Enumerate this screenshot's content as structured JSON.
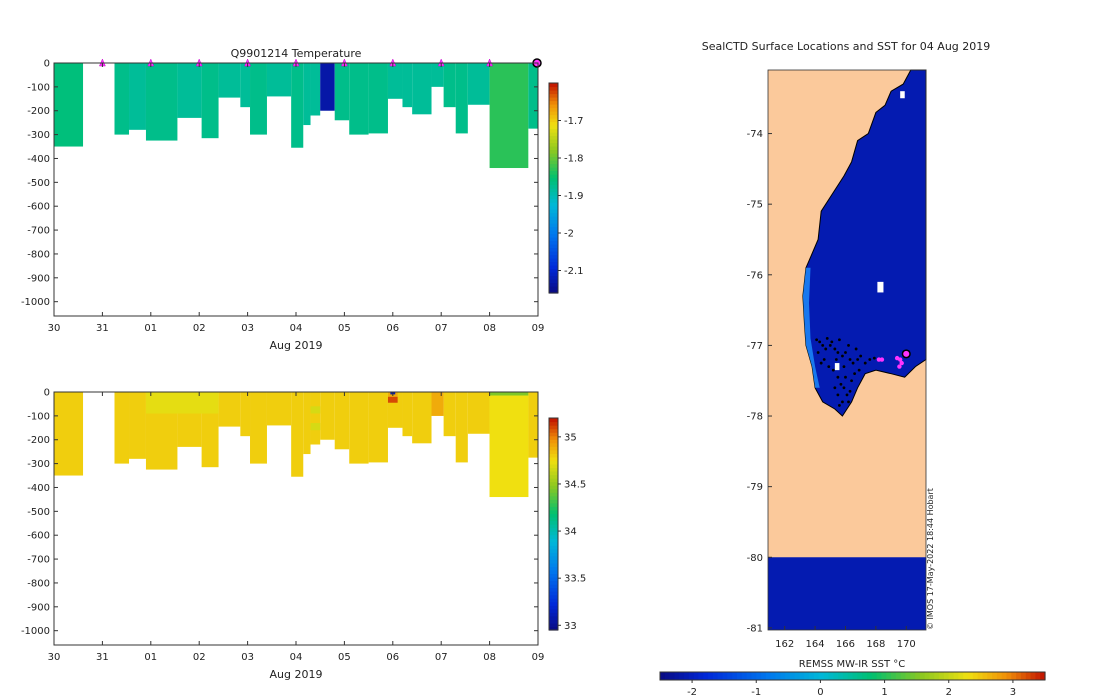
{
  "figure": {
    "credit": "© IMOS 17-May-2022 18:44 Hobart"
  },
  "chart_data": [
    {
      "type": "heatmap",
      "title": "Q9901214  Temperature",
      "xlabel": "Aug 2019",
      "x_ticks": [
        "30",
        "31",
        "01",
        "02",
        "03",
        "04",
        "05",
        "06",
        "07",
        "08",
        "09"
      ],
      "x_range_days": [
        0,
        10
      ],
      "y_ticks": [
        0,
        -100,
        -200,
        -300,
        -400,
        -500,
        -600,
        -700,
        -800,
        -900,
        -1000
      ],
      "ylim": [
        -1060,
        0
      ],
      "colorbar": {
        "ticks": [
          -1.7,
          -1.8,
          -1.9,
          -2,
          -2.1
        ],
        "range": [
          -2.16,
          -1.6
        ]
      },
      "surface_markers_days": [
        1,
        2,
        3,
        4,
        5,
        6,
        7,
        8,
        9
      ],
      "last_marker_day": 10,
      "profiles": [
        {
          "start": 0.0,
          "end": 0.6,
          "depth": 350,
          "value": -1.86
        },
        {
          "start": 1.25,
          "end": 1.55,
          "depth": 300,
          "value": -1.87
        },
        {
          "start": 1.55,
          "end": 1.9,
          "depth": 280,
          "value": -1.88
        },
        {
          "start": 1.9,
          "end": 2.55,
          "depth": 325,
          "value": -1.87
        },
        {
          "start": 2.55,
          "end": 3.05,
          "depth": 230,
          "value": -1.88
        },
        {
          "start": 3.05,
          "end": 3.4,
          "depth": 315,
          "value": -1.87
        },
        {
          "start": 3.4,
          "end": 3.85,
          "depth": 145,
          "value": -1.88
        },
        {
          "start": 3.85,
          "end": 4.05,
          "depth": 185,
          "value": -1.88
        },
        {
          "start": 4.05,
          "end": 4.4,
          "depth": 300,
          "value": -1.87
        },
        {
          "start": 4.4,
          "end": 4.9,
          "depth": 140,
          "value": -1.88
        },
        {
          "start": 4.9,
          "end": 5.15,
          "depth": 355,
          "value": -1.87
        },
        {
          "start": 5.15,
          "end": 5.3,
          "depth": 260,
          "value": -1.88
        },
        {
          "start": 5.3,
          "end": 5.5,
          "depth": 220,
          "value": -1.88
        },
        {
          "start": 5.5,
          "end": 5.8,
          "depth": 200,
          "value": -2.13
        },
        {
          "start": 5.8,
          "end": 6.1,
          "depth": 240,
          "value": -1.87
        },
        {
          "start": 6.1,
          "end": 6.5,
          "depth": 300,
          "value": -1.87
        },
        {
          "start": 6.5,
          "end": 6.9,
          "depth": 295,
          "value": -1.87
        },
        {
          "start": 6.9,
          "end": 7.2,
          "depth": 150,
          "value": -1.88
        },
        {
          "start": 7.2,
          "end": 7.4,
          "depth": 185,
          "value": -1.88
        },
        {
          "start": 7.4,
          "end": 7.8,
          "depth": 215,
          "value": -1.88
        },
        {
          "start": 7.8,
          "end": 8.05,
          "depth": 100,
          "value": -1.88
        },
        {
          "start": 8.05,
          "end": 8.3,
          "depth": 185,
          "value": -1.87
        },
        {
          "start": 8.3,
          "end": 8.55,
          "depth": 295,
          "value": -1.87
        },
        {
          "start": 8.55,
          "end": 9.0,
          "depth": 175,
          "value": -1.88
        },
        {
          "start": 9.0,
          "end": 9.8,
          "depth": 440,
          "value": -1.83
        },
        {
          "start": 9.8,
          "end": 10.05,
          "depth": 275,
          "value": -1.87
        }
      ]
    },
    {
      "type": "heatmap",
      "title": "",
      "xlabel": "Aug 2019",
      "x_ticks": [
        "30",
        "31",
        "01",
        "02",
        "03",
        "04",
        "05",
        "06",
        "07",
        "08",
        "09"
      ],
      "x_range_days": [
        0,
        10
      ],
      "y_ticks": [
        0,
        -100,
        -200,
        -300,
        -400,
        -500,
        -600,
        -700,
        -800,
        -900,
        -1000
      ],
      "ylim": [
        -1060,
        0
      ],
      "colorbar": {
        "ticks": [
          35,
          34.5,
          34,
          33.5,
          33
        ],
        "range": [
          32.95,
          35.2
        ]
      },
      "profiles": [
        {
          "start": 0.0,
          "end": 0.6,
          "depth": 350,
          "value": 34.8
        },
        {
          "start": 1.25,
          "end": 1.55,
          "depth": 300,
          "value": 34.8
        },
        {
          "start": 1.55,
          "end": 1.9,
          "depth": 280,
          "value": 34.8
        },
        {
          "start": 1.9,
          "end": 2.55,
          "depth": 325,
          "value": 34.8
        },
        {
          "start": 2.55,
          "end": 3.05,
          "depth": 230,
          "value": 34.8
        },
        {
          "start": 3.05,
          "end": 3.4,
          "depth": 315,
          "value": 34.8
        },
        {
          "start": 3.4,
          "end": 3.85,
          "depth": 145,
          "value": 34.8
        },
        {
          "start": 3.85,
          "end": 4.05,
          "depth": 185,
          "value": 34.8
        },
        {
          "start": 4.05,
          "end": 4.4,
          "depth": 300,
          "value": 34.8
        },
        {
          "start": 4.4,
          "end": 4.9,
          "depth": 140,
          "value": 34.8
        },
        {
          "start": 4.9,
          "end": 5.15,
          "depth": 355,
          "value": 34.8
        },
        {
          "start": 5.15,
          "end": 5.3,
          "depth": 260,
          "value": 34.8
        },
        {
          "start": 5.3,
          "end": 5.5,
          "depth": 220,
          "value": 34.8
        },
        {
          "start": 5.5,
          "end": 5.8,
          "depth": 200,
          "value": 34.8
        },
        {
          "start": 5.8,
          "end": 6.1,
          "depth": 240,
          "value": 34.8
        },
        {
          "start": 6.1,
          "end": 6.5,
          "depth": 300,
          "value": 34.8
        },
        {
          "start": 6.5,
          "end": 6.9,
          "depth": 295,
          "value": 34.8
        },
        {
          "start": 6.9,
          "end": 7.2,
          "depth": 150,
          "value": 34.8
        },
        {
          "start": 7.2,
          "end": 7.4,
          "depth": 185,
          "value": 34.8
        },
        {
          "start": 7.4,
          "end": 7.8,
          "depth": 215,
          "value": 34.8
        },
        {
          "start": 7.8,
          "end": 8.05,
          "depth": 100,
          "value": 34.8
        },
        {
          "start": 8.05,
          "end": 8.3,
          "depth": 185,
          "value": 34.8
        },
        {
          "start": 8.3,
          "end": 8.55,
          "depth": 295,
          "value": 34.8
        },
        {
          "start": 8.55,
          "end": 9.0,
          "depth": 175,
          "value": 34.8
        },
        {
          "start": 9.0,
          "end": 9.8,
          "depth": 440,
          "value": 34.75
        },
        {
          "start": 9.8,
          "end": 10.05,
          "depth": 275,
          "value": 34.8
        }
      ],
      "patches": [
        {
          "start": 1.9,
          "end": 3.4,
          "top": 0,
          "bottom": 90,
          "value": 34.72
        },
        {
          "start": 5.3,
          "end": 5.5,
          "top": 60,
          "bottom": 90,
          "value": 34.68
        },
        {
          "start": 5.3,
          "end": 5.5,
          "top": 130,
          "bottom": 160,
          "value": 34.68
        },
        {
          "start": 6.9,
          "end": 7.1,
          "top": 0,
          "bottom": 20,
          "value": 34.9
        },
        {
          "start": 6.9,
          "end": 7.1,
          "top": 20,
          "bottom": 45,
          "value": 35.1
        },
        {
          "start": 6.95,
          "end": 7.05,
          "top": 0,
          "bottom": 10,
          "value": 33.1
        },
        {
          "start": 7.8,
          "end": 8.05,
          "top": 0,
          "bottom": 100,
          "value": 34.9
        },
        {
          "start": 9.0,
          "end": 9.8,
          "top": 0,
          "bottom": 15,
          "value": 34.45
        },
        {
          "start": 9.0,
          "end": 9.8,
          "top": 15,
          "bottom": 440,
          "value": 34.75
        }
      ]
    },
    {
      "type": "heatmap",
      "title": "SealCTD Surface Locations and SST for 04 Aug 2019",
      "xlabel": "",
      "lon_ticks": [
        162,
        164,
        166,
        168,
        170
      ],
      "lon_range": [
        160.9,
        171.3
      ],
      "lat_ticks": [
        -74,
        -75,
        -76,
        -77,
        -78,
        -79,
        -80,
        -81
      ],
      "lat_range": [
        -81.03,
        -73.1
      ],
      "colorbar": {
        "label": "REMSS MW-IR SST °C",
        "ticks": [
          -2,
          -1,
          0,
          1,
          2,
          3
        ],
        "range": [
          -2.5,
          3.5
        ]
      },
      "land_color": "#fbc99b",
      "ocean_sst": -2.1,
      "current_location": {
        "lon": 170.0,
        "lat": -77.12
      },
      "recent_locations": [
        {
          "lon": 169.6,
          "lat": -77.2
        },
        {
          "lon": 169.7,
          "lat": -77.25
        },
        {
          "lon": 168.4,
          "lat": -77.2
        },
        {
          "lon": 168.2,
          "lat": -77.2
        },
        {
          "lon": 169.4,
          "lat": -77.18
        },
        {
          "lon": 169.55,
          "lat": -77.3
        }
      ],
      "track_points": [
        {
          "lon": 164.1,
          "lat": -76.92
        },
        {
          "lon": 164.3,
          "lat": -76.95
        },
        {
          "lon": 164.5,
          "lat": -77.0
        },
        {
          "lon": 164.7,
          "lat": -77.05
        },
        {
          "lon": 165.0,
          "lat": -77.0
        },
        {
          "lon": 165.3,
          "lat": -77.05
        },
        {
          "lon": 165.5,
          "lat": -77.1
        },
        {
          "lon": 165.8,
          "lat": -77.15
        },
        {
          "lon": 166.0,
          "lat": -77.1
        },
        {
          "lon": 166.3,
          "lat": -77.2
        },
        {
          "lon": 166.5,
          "lat": -77.25
        },
        {
          "lon": 166.8,
          "lat": -77.2
        },
        {
          "lon": 167.0,
          "lat": -77.15
        },
        {
          "lon": 164.6,
          "lat": -77.2
        },
        {
          "lon": 164.9,
          "lat": -77.3
        },
        {
          "lon": 165.2,
          "lat": -77.35
        },
        {
          "lon": 165.5,
          "lat": -77.45
        },
        {
          "lon": 165.7,
          "lat": -77.55
        },
        {
          "lon": 165.9,
          "lat": -77.6
        },
        {
          "lon": 166.1,
          "lat": -77.7
        },
        {
          "lon": 166.2,
          "lat": -77.8
        },
        {
          "lon": 165.8,
          "lat": -77.8
        },
        {
          "lon": 165.5,
          "lat": -77.7
        },
        {
          "lon": 165.3,
          "lat": -77.6
        },
        {
          "lon": 166.4,
          "lat": -77.5
        },
        {
          "lon": 166.6,
          "lat": -77.4
        },
        {
          "lon": 166.9,
          "lat": -77.35
        },
        {
          "lon": 167.3,
          "lat": -77.25
        },
        {
          "lon": 167.6,
          "lat": -77.2
        },
        {
          "lon": 167.9,
          "lat": -77.18
        },
        {
          "lon": 164.2,
          "lat": -77.1
        },
        {
          "lon": 164.4,
          "lat": -77.25
        },
        {
          "lon": 164.8,
          "lat": -76.9
        },
        {
          "lon": 165.1,
          "lat": -76.95
        },
        {
          "lon": 165.6,
          "lat": -76.92
        },
        {
          "lon": 166.2,
          "lat": -77.0
        },
        {
          "lon": 166.7,
          "lat": -77.05
        },
        {
          "lon": 165.9,
          "lat": -77.3
        },
        {
          "lon": 165.4,
          "lat": -77.2
        },
        {
          "lon": 166.0,
          "lat": -77.45
        },
        {
          "lon": 165.6,
          "lat": -77.85
        },
        {
          "lon": 166.3,
          "lat": -77.65
        }
      ]
    }
  ]
}
